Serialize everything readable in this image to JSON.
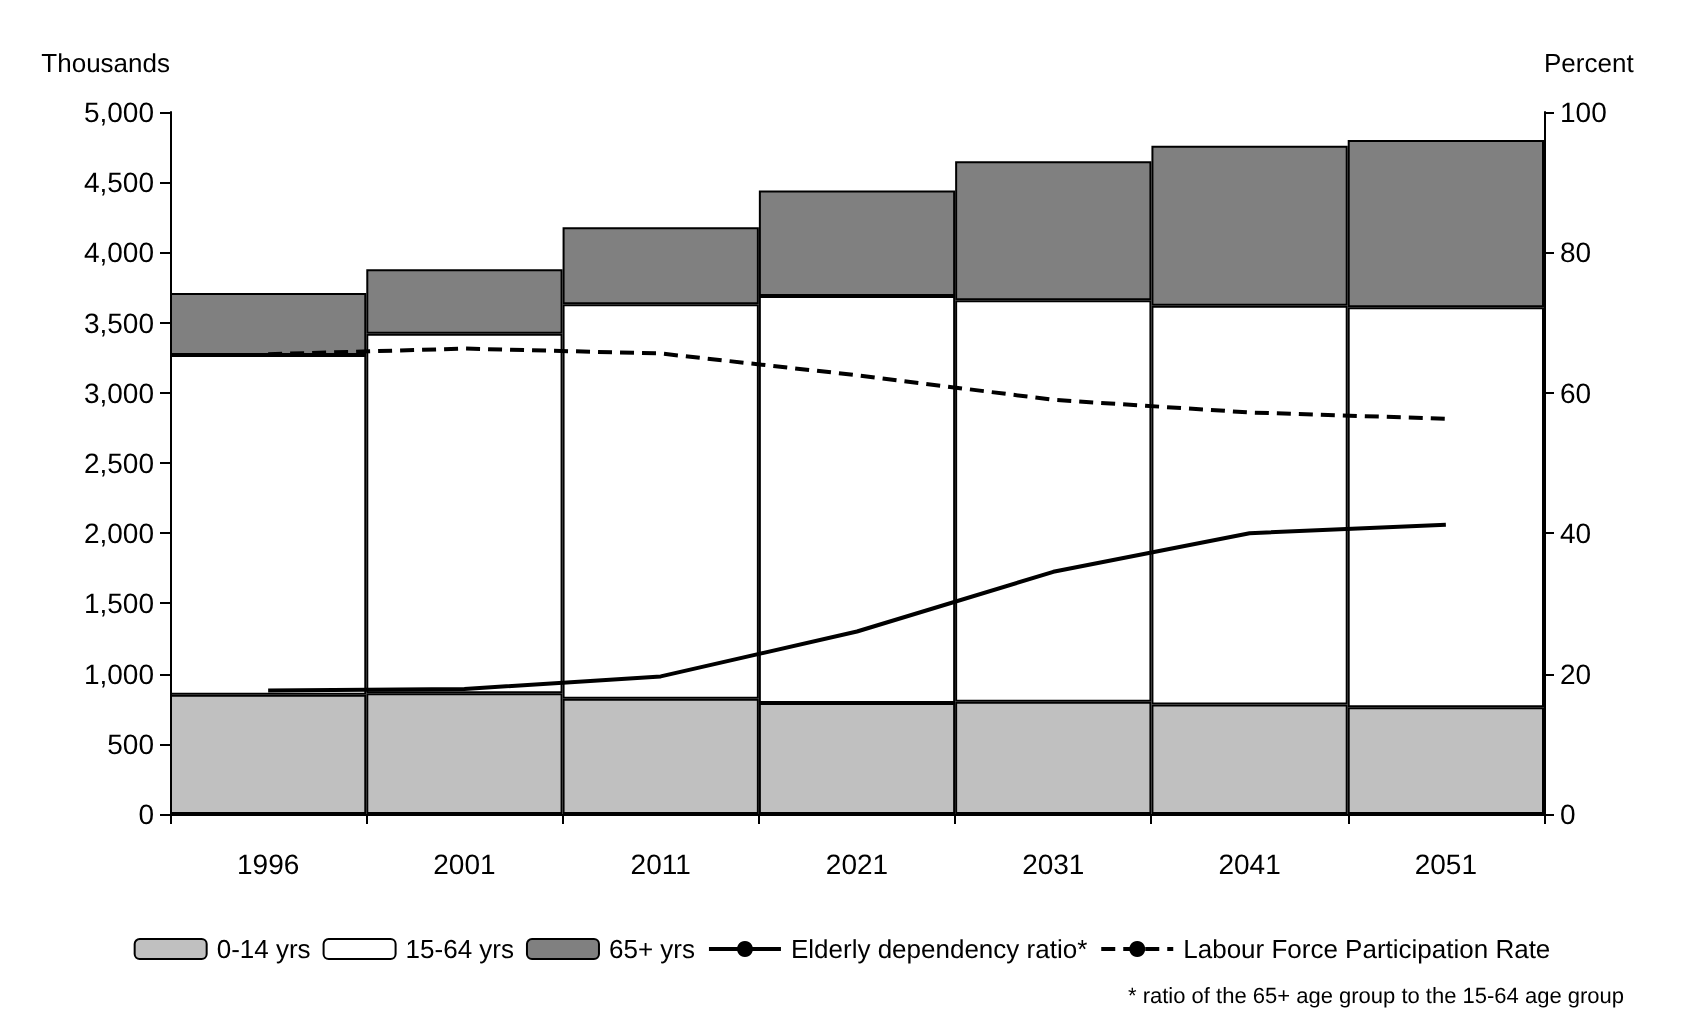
{
  "chart_data": {
    "type": "bar",
    "stacked": true,
    "ylabel": "Thousands",
    "y2label": "Percent",
    "categories": [
      "1996",
      "2001",
      "2011",
      "2021",
      "2031",
      "2041",
      "2051"
    ],
    "series": [
      {
        "name": "0-14 yrs",
        "color": "#c0c0c0",
        "values": [
          850,
          860,
          820,
          790,
          800,
          780,
          760
        ]
      },
      {
        "name": "15-64 yrs",
        "color": "#ffffff",
        "values": [
          2420,
          2560,
          2810,
          2900,
          2860,
          2840,
          2850
        ]
      },
      {
        "name": "65+ yrs",
        "color": "#808080",
        "values": [
          440,
          460,
          550,
          750,
          990,
          1140,
          1190
        ]
      },
      {
        "name": "Elderly dependency ratio*",
        "type": "line",
        "axis": "y2",
        "color": "#000000",
        "line_style": "solid",
        "values": [
          17.6,
          17.8,
          19.6,
          26,
          34.5,
          40,
          41.2
        ]
      },
      {
        "name": "Labour Force Participation Rate",
        "type": "line",
        "axis": "y2",
        "color": "#000000",
        "line_style": "dashed",
        "values": [
          65.5,
          66.3,
          65.6,
          62.5,
          59,
          57.2,
          56.3
        ]
      }
    ],
    "ylim": [
      0,
      5000
    ],
    "yticks": [
      {
        "value": 0,
        "label": "0"
      },
      {
        "value": 500,
        "label": "500"
      },
      {
        "value": 1000,
        "label": "1,000"
      },
      {
        "value": 1500,
        "label": "1,500"
      },
      {
        "value": 2000,
        "label": "2,000"
      },
      {
        "value": 2500,
        "label": "2,500"
      },
      {
        "value": 3000,
        "label": "3,000"
      },
      {
        "value": 3500,
        "label": "3,500"
      },
      {
        "value": 4000,
        "label": "4,000"
      },
      {
        "value": 4500,
        "label": "4,500"
      },
      {
        "value": 5000,
        "label": "5,000"
      }
    ],
    "y2lim": [
      0,
      100
    ],
    "y2ticks": [
      0,
      20,
      40,
      60,
      80,
      100
    ],
    "grid": false,
    "legend": "bottom",
    "marker": "none",
    "annotations": [
      "* ratio of the 65+ age group to the 15-64 age group"
    ]
  }
}
